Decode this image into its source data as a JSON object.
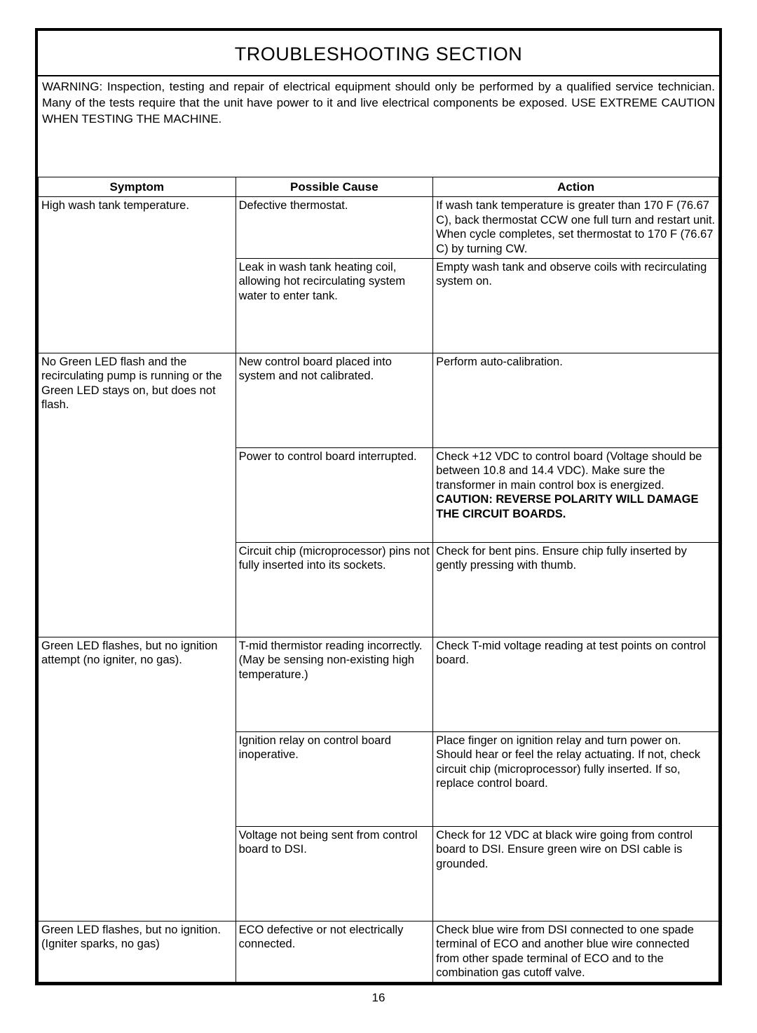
{
  "title": "TROUBLESHOOTING SECTION",
  "warning": "WARNING: Inspection, testing and repair of electrical equipment should only be performed by a qualified service technician. Many of the tests require that the unit have power to it and live electrical components be exposed. USE EXTREME CAUTION WHEN TESTING THE MACHINE.",
  "headers": {
    "symptom": "Symptom",
    "cause": "Possible Cause",
    "action": "Action"
  },
  "rows": [
    {
      "symptom": "High wash tank temperature.",
      "cause": "Defective thermostat.",
      "action": "If wash tank temperature is greater than 170 F (76.67 C), back thermostat CCW one full turn and restart unit. When cycle completes, set thermostat to 170 F (76.67 C) by turning CW.",
      "rowspan_symptom": 2
    },
    {
      "cause": "Leak in wash tank heating coil, allowing hot recirculating system water to enter tank.",
      "action": "Empty wash tank and observe coils with recirculating system on."
    },
    {
      "symptom": "No Green LED flash and the recirculating pump is running or the Green LED stays on, but does not flash.",
      "cause": "New control board placed into system and not calibrated.",
      "action": "Perform auto-calibration.",
      "rowspan_symptom": 3
    },
    {
      "cause": "Power to control board interrupted.",
      "action_prefix": "Check +12 VDC to control board (Voltage should be between 10.8 and 14.4 VDC). Make sure the transformer in main control box is energized. ",
      "action_bold": "CAUTION:  REVERSE POLARITY WILL DAMAGE THE CIRCUIT BOARDS."
    },
    {
      "cause": "Circuit chip (microprocessor) pins not fully inserted into its sockets.",
      "action": "Check for bent pins.  Ensure chip fully inserted by gently pressing with thumb."
    },
    {
      "symptom": "Green LED flashes, but no ignition attempt (no igniter, no gas).",
      "cause": "T-mid thermistor reading incorrectly. (May be sensing non-existing high temperature.)",
      "action": "Check T-mid voltage reading at test points on control board.",
      "rowspan_symptom": 3
    },
    {
      "cause": "Ignition relay on control board inoperative.",
      "action": "Place finger on ignition relay and turn power on. Should hear or feel the relay actuating. If not, check circuit chip (microprocessor) fully inserted. If so, replace control board."
    },
    {
      "cause": "Voltage not being sent from control board to DSI.",
      "action": "Check for 12 VDC at black wire going from control board to DSI. Ensure green wire on DSI cable is grounded."
    },
    {
      "symptom": "Green LED flashes, but no ignition. (Igniter sparks, no gas)",
      "cause": "ECO defective or not electrically connected.",
      "action": "Check blue wire from DSI connected to one spade terminal of ECO and another blue wire connected from other spade terminal of ECO and to the combination gas cutoff valve."
    }
  ],
  "page_number": "16"
}
